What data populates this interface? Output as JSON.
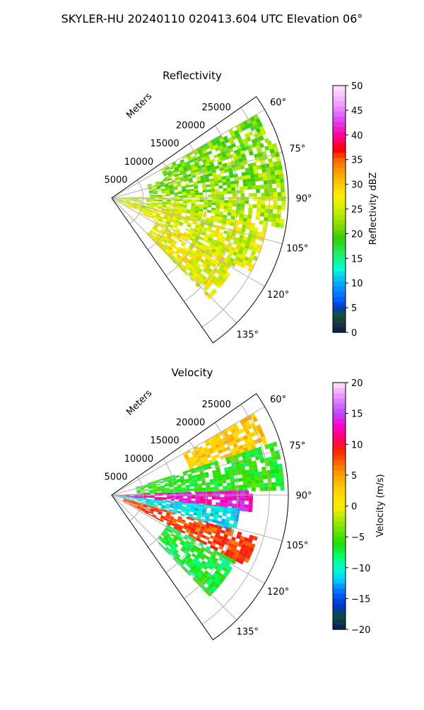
{
  "figure": {
    "title": "SKYLER-HU  20240110  020413.604 UTC Elevation 06°"
  },
  "chart_data": [
    {
      "type": "heatmap",
      "title": "Reflectivity",
      "radial_label": "Meters",
      "radial_ticks": [
        "5000",
        "10000",
        "15000",
        "20000",
        "25000"
      ],
      "radial_tick_values": [
        5000,
        10000,
        15000,
        20000,
        25000
      ],
      "angle_ticks": [
        "60°",
        "75°",
        "90°",
        "105°",
        "120°",
        "135°"
      ],
      "angle_tick_values": [
        60,
        75,
        90,
        105,
        120,
        135
      ],
      "theta_range": [
        55,
        145
      ],
      "r_range": [
        0,
        28000
      ],
      "grid": true,
      "colorbar": {
        "label": "Reflectivity dBZ",
        "range": [
          0,
          50
        ],
        "ticks": [
          "0",
          "5",
          "10",
          "15",
          "20",
          "25",
          "30",
          "35",
          "40",
          "45",
          "50"
        ],
        "tick_values": [
          0,
          5,
          10,
          15,
          20,
          25,
          30,
          35,
          40,
          45,
          50
        ],
        "stops": [
          {
            "v": 0,
            "c": "#0a1a5a"
          },
          {
            "v": 2,
            "c": "#1e3a2e"
          },
          {
            "v": 4,
            "c": "#0e5a46"
          },
          {
            "v": 5,
            "c": "#0033cc"
          },
          {
            "v": 7,
            "c": "#0066ff"
          },
          {
            "v": 10,
            "c": "#00aaff"
          },
          {
            "v": 13,
            "c": "#00ffd5"
          },
          {
            "v": 16,
            "c": "#22ee66"
          },
          {
            "v": 19,
            "c": "#33cc00"
          },
          {
            "v": 22,
            "c": "#88e000"
          },
          {
            "v": 25,
            "c": "#ccf000"
          },
          {
            "v": 28,
            "c": "#ffee00"
          },
          {
            "v": 32,
            "c": "#ffaa00"
          },
          {
            "v": 35,
            "c": "#ff6600"
          },
          {
            "v": 37,
            "c": "#ff0000"
          },
          {
            "v": 40,
            "c": "#ff0099"
          },
          {
            "v": 43,
            "c": "#dd44ff"
          },
          {
            "v": 46,
            "c": "#ee99ff"
          },
          {
            "v": 50,
            "c": "#ffe6ff"
          }
        ]
      },
      "field": {
        "description_values_dbz": "typical values per angular sector",
        "sectors": [
          {
            "theta": [
              60,
              70
            ],
            "r": [
              9000,
              26000
            ],
            "value": 21
          },
          {
            "theta": [
              70,
              88
            ],
            "r": [
              6000,
              27000
            ],
            "value": 22
          },
          {
            "theta": [
              88,
              100
            ],
            "r": [
              0,
              27000
            ],
            "value": 24
          },
          {
            "theta": [
              100,
              118
            ],
            "r": [
              1000,
              25000
            ],
            "value": 26
          },
          {
            "theta": [
              118,
              135
            ],
            "r": [
              8000,
              22000
            ],
            "value": 27
          }
        ]
      }
    },
    {
      "type": "heatmap",
      "title": "Velocity",
      "radial_label": "Meters",
      "radial_ticks": [
        "5000",
        "10000",
        "15000",
        "20000",
        "25000"
      ],
      "radial_tick_values": [
        5000,
        10000,
        15000,
        20000,
        25000
      ],
      "angle_ticks": [
        "60°",
        "75°",
        "90°",
        "105°",
        "120°",
        "135°"
      ],
      "angle_tick_values": [
        60,
        75,
        90,
        105,
        120,
        135
      ],
      "theta_range": [
        55,
        145
      ],
      "r_range": [
        0,
        28000
      ],
      "grid": true,
      "colorbar": {
        "label": "Velocity (m/s)",
        "range": [
          -20,
          20
        ],
        "ticks": [
          "−20",
          "−15",
          "−10",
          "−5",
          "0",
          "5",
          "10",
          "15",
          "20"
        ],
        "tick_values": [
          -20,
          -15,
          -10,
          -5,
          0,
          5,
          10,
          15,
          20
        ],
        "stops": [
          {
            "v": -20,
            "c": "#0a1a5a"
          },
          {
            "v": -18,
            "c": "#0e4a3e"
          },
          {
            "v": -16,
            "c": "#0033cc"
          },
          {
            "v": -14,
            "c": "#0066ff"
          },
          {
            "v": -12,
            "c": "#00ccff"
          },
          {
            "v": -10,
            "c": "#00ffcc"
          },
          {
            "v": -8,
            "c": "#00ff66"
          },
          {
            "v": -6,
            "c": "#22dd00"
          },
          {
            "v": -3,
            "c": "#88e800"
          },
          {
            "v": 0,
            "c": "#ffee00"
          },
          {
            "v": 3,
            "c": "#ffcc00"
          },
          {
            "v": 6,
            "c": "#ff8800"
          },
          {
            "v": 9,
            "c": "#ff2200"
          },
          {
            "v": 11,
            "c": "#ff0066"
          },
          {
            "v": 13,
            "c": "#ff00cc"
          },
          {
            "v": 15,
            "c": "#bb44ff"
          },
          {
            "v": 18,
            "c": "#ee99ff"
          },
          {
            "v": 20,
            "c": "#ffe6ff"
          }
        ]
      },
      "field": {
        "sectors": [
          {
            "theta": [
              60,
              72
            ],
            "r": [
              13000,
              26000
            ],
            "value": 3
          },
          {
            "theta": [
              72,
              88
            ],
            "r": [
              4000,
              27000
            ],
            "value": -6
          },
          {
            "theta": [
              88,
              96
            ],
            "r": [
              0,
              22000
            ],
            "value": 13
          },
          {
            "theta": [
              96,
              106
            ],
            "r": [
              0,
              20000
            ],
            "value": -11
          },
          {
            "theta": [
              106,
              118
            ],
            "r": [
              2000,
              24000
            ],
            "value": 8
          },
          {
            "theta": [
              118,
              135
            ],
            "r": [
              10000,
              22000
            ],
            "value": -7
          }
        ]
      }
    }
  ]
}
